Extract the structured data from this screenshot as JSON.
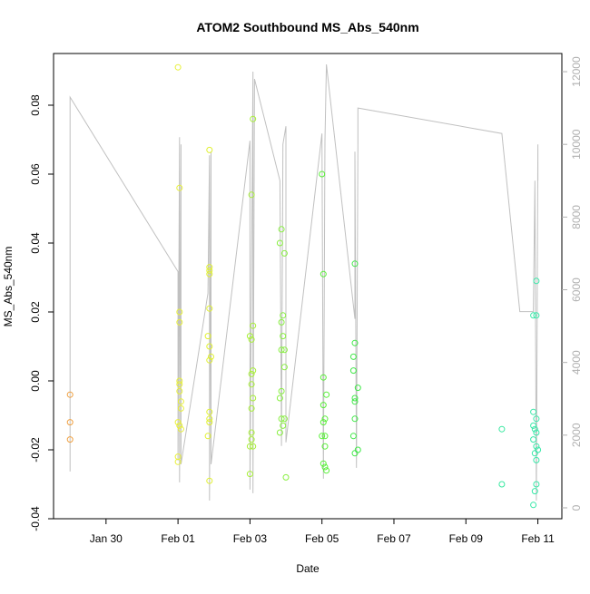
{
  "chart_data": {
    "type": "scatter",
    "title": "ATOM2 Southbound MS_Abs_540nm",
    "xlabel": "Date",
    "ylabel": "MS_Abs_540nm",
    "secondary_ylabel": "",
    "grid": false,
    "legend": "none",
    "x_type": "date",
    "xlim": [
      "2023-01-28T13:00",
      "2023-02-11T16:00"
    ],
    "ylim": [
      -0.04,
      0.095
    ],
    "y2lim": [
      -300,
      12500
    ],
    "x_ticks": [
      {
        "date": "2023-01-30T00:00",
        "label": "Jan 30"
      },
      {
        "date": "2023-02-01T00:00",
        "label": "Feb 01"
      },
      {
        "date": "2023-02-03T00:00",
        "label": "Feb 03"
      },
      {
        "date": "2023-02-05T00:00",
        "label": "Feb 05"
      },
      {
        "date": "2023-02-07T00:00",
        "label": "Feb 07"
      },
      {
        "date": "2023-02-09T00:00",
        "label": "Feb 09"
      },
      {
        "date": "2023-02-11T00:00",
        "label": "Feb 11"
      }
    ],
    "y_ticks": [
      {
        "value": -0.04,
        "label": "-0.04"
      },
      {
        "value": -0.02,
        "label": "-0.02"
      },
      {
        "value": 0.0,
        "label": "0.00"
      },
      {
        "value": 0.02,
        "label": "0.02"
      },
      {
        "value": 0.04,
        "label": "0.04"
      },
      {
        "value": 0.06,
        "label": "0.06"
      },
      {
        "value": 0.08,
        "label": "0.08"
      }
    ],
    "y2_ticks": [
      {
        "value": 0,
        "label": "0"
      },
      {
        "value": 2000,
        "label": "2000"
      },
      {
        "value": 4000,
        "label": "4000"
      },
      {
        "value": 6000,
        "label": "6000"
      },
      {
        "value": 8000,
        "label": "8000"
      },
      {
        "value": 10000,
        "label": "10000"
      },
      {
        "value": 12000,
        "label": "12000"
      }
    ],
    "colors": {
      "line": "#c0c0c0",
      "axis": "#000000",
      "y2_axis": "#b0b0b0"
    },
    "points": [
      {
        "x": "2023-01-29T00:00",
        "y": -0.004,
        "color": "#f0a040"
      },
      {
        "x": "2023-01-29T00:00",
        "y": -0.012,
        "color": "#f0a040"
      },
      {
        "x": "2023-01-29T00:00",
        "y": -0.017,
        "color": "#f0a040"
      },
      {
        "x": "2023-02-01T00:00",
        "y": 0.091,
        "color": "#e8f038"
      },
      {
        "x": "2023-02-01T00:00",
        "y": -0.012,
        "color": "#e8f038"
      },
      {
        "x": "2023-02-01T00:00",
        "y": -0.022,
        "color": "#e8f038"
      },
      {
        "x": "2023-02-01T00:00",
        "y": -0.0235,
        "color": "#e8f038"
      },
      {
        "x": "2023-02-01T01:00",
        "y": 0.056,
        "color": "#e8f038"
      },
      {
        "x": "2023-02-01T01:00",
        "y": 0.02,
        "color": "#e8f038"
      },
      {
        "x": "2023-02-01T01:00",
        "y": 0.017,
        "color": "#e8f038"
      },
      {
        "x": "2023-02-01T01:00",
        "y": 0.0,
        "color": "#e8f038"
      },
      {
        "x": "2023-02-01T01:00",
        "y": -0.001,
        "color": "#e8f038"
      },
      {
        "x": "2023-02-01T01:00",
        "y": -0.003,
        "color": "#e8f038"
      },
      {
        "x": "2023-02-01T02:00",
        "y": -0.006,
        "color": "#e8f038"
      },
      {
        "x": "2023-02-01T02:00",
        "y": -0.008,
        "color": "#e8f038"
      },
      {
        "x": "2023-02-01T01:00",
        "y": -0.013,
        "color": "#e8f038"
      },
      {
        "x": "2023-02-01T02:00",
        "y": -0.014,
        "color": "#e8f038"
      },
      {
        "x": "2023-02-01T20:00",
        "y": -0.016,
        "color": "#e0f030"
      },
      {
        "x": "2023-02-01T20:00",
        "y": 0.013,
        "color": "#e0f030"
      },
      {
        "x": "2023-02-01T21:00",
        "y": 0.067,
        "color": "#e0f030"
      },
      {
        "x": "2023-02-01T21:00",
        "y": 0.033,
        "color": "#e0f030"
      },
      {
        "x": "2023-02-01T21:00",
        "y": 0.032,
        "color": "#e0f030"
      },
      {
        "x": "2023-02-01T21:00",
        "y": 0.031,
        "color": "#e0f030"
      },
      {
        "x": "2023-02-01T21:00",
        "y": 0.021,
        "color": "#e0f030"
      },
      {
        "x": "2023-02-01T21:00",
        "y": 0.01,
        "color": "#e0f030"
      },
      {
        "x": "2023-02-01T22:00",
        "y": 0.007,
        "color": "#e0f030"
      },
      {
        "x": "2023-02-01T21:00",
        "y": 0.006,
        "color": "#e0f030"
      },
      {
        "x": "2023-02-01T21:00",
        "y": -0.009,
        "color": "#e0f030"
      },
      {
        "x": "2023-02-01T21:00",
        "y": -0.011,
        "color": "#e0f030"
      },
      {
        "x": "2023-02-01T21:00",
        "y": -0.012,
        "color": "#e0f030"
      },
      {
        "x": "2023-02-01T21:00",
        "y": -0.029,
        "color": "#e0f030"
      },
      {
        "x": "2023-02-03T00:00",
        "y": 0.013,
        "color": "#a8f038"
      },
      {
        "x": "2023-02-03T02:00",
        "y": 0.076,
        "color": "#a8f038"
      },
      {
        "x": "2023-02-03T01:00",
        "y": 0.054,
        "color": "#a8f038"
      },
      {
        "x": "2023-02-03T02:00",
        "y": 0.016,
        "color": "#a8f038"
      },
      {
        "x": "2023-02-03T01:00",
        "y": 0.012,
        "color": "#a8f038"
      },
      {
        "x": "2023-02-03T02:00",
        "y": 0.003,
        "color": "#a8f038"
      },
      {
        "x": "2023-02-03T01:00",
        "y": 0.002,
        "color": "#a8f038"
      },
      {
        "x": "2023-02-03T01:00",
        "y": -0.001,
        "color": "#a8f038"
      },
      {
        "x": "2023-02-03T02:00",
        "y": -0.005,
        "color": "#a8f038"
      },
      {
        "x": "2023-02-03T01:00",
        "y": -0.008,
        "color": "#a8f038"
      },
      {
        "x": "2023-02-03T01:00",
        "y": -0.015,
        "color": "#a8f038"
      },
      {
        "x": "2023-02-03T01:00",
        "y": -0.017,
        "color": "#a8f038"
      },
      {
        "x": "2023-02-03T00:00",
        "y": -0.019,
        "color": "#a8f038"
      },
      {
        "x": "2023-02-03T02:00",
        "y": -0.019,
        "color": "#a8f038"
      },
      {
        "x": "2023-02-03T00:00",
        "y": -0.027,
        "color": "#a8f038"
      },
      {
        "x": "2023-02-03T21:00",
        "y": 0.044,
        "color": "#88f040"
      },
      {
        "x": "2023-02-03T20:00",
        "y": 0.04,
        "color": "#88f040"
      },
      {
        "x": "2023-02-03T23:00",
        "y": 0.037,
        "color": "#88f040"
      },
      {
        "x": "2023-02-03T22:00",
        "y": 0.019,
        "color": "#88f040"
      },
      {
        "x": "2023-02-03T21:00",
        "y": 0.017,
        "color": "#88f040"
      },
      {
        "x": "2023-02-03T22:00",
        "y": 0.013,
        "color": "#88f040"
      },
      {
        "x": "2023-02-03T21:00",
        "y": 0.009,
        "color": "#88f040"
      },
      {
        "x": "2023-02-03T23:00",
        "y": 0.009,
        "color": "#88f040"
      },
      {
        "x": "2023-02-03T23:00",
        "y": 0.004,
        "color": "#88f040"
      },
      {
        "x": "2023-02-03T21:00",
        "y": -0.003,
        "color": "#88f040"
      },
      {
        "x": "2023-02-03T20:00",
        "y": -0.005,
        "color": "#88f040"
      },
      {
        "x": "2023-02-03T21:00",
        "y": -0.011,
        "color": "#88f040"
      },
      {
        "x": "2023-02-03T23:00",
        "y": -0.011,
        "color": "#88f040"
      },
      {
        "x": "2023-02-03T22:00",
        "y": -0.013,
        "color": "#88f040"
      },
      {
        "x": "2023-02-03T20:00",
        "y": -0.015,
        "color": "#88f040"
      },
      {
        "x": "2023-02-04T00:00",
        "y": -0.028,
        "color": "#88f040"
      },
      {
        "x": "2023-02-05T00:00",
        "y": 0.06,
        "color": "#58f038"
      },
      {
        "x": "2023-02-05T01:00",
        "y": 0.031,
        "color": "#58f038"
      },
      {
        "x": "2023-02-05T01:00",
        "y": 0.001,
        "color": "#58f038"
      },
      {
        "x": "2023-02-05T03:00",
        "y": -0.004,
        "color": "#58f038"
      },
      {
        "x": "2023-02-05T01:00",
        "y": -0.007,
        "color": "#58f038"
      },
      {
        "x": "2023-02-05T02:00",
        "y": -0.011,
        "color": "#58f038"
      },
      {
        "x": "2023-02-05T01:00",
        "y": -0.012,
        "color": "#58f038"
      },
      {
        "x": "2023-02-05T02:00",
        "y": -0.016,
        "color": "#58f038"
      },
      {
        "x": "2023-02-05T00:00",
        "y": -0.016,
        "color": "#58f038"
      },
      {
        "x": "2023-02-05T02:00",
        "y": -0.019,
        "color": "#58f038"
      },
      {
        "x": "2023-02-05T01:00",
        "y": -0.024,
        "color": "#58f038"
      },
      {
        "x": "2023-02-05T02:00",
        "y": -0.025,
        "color": "#58f038"
      },
      {
        "x": "2023-02-05T03:00",
        "y": -0.026,
        "color": "#58f038"
      },
      {
        "x": "2023-02-05T22:00",
        "y": 0.034,
        "color": "#40e848"
      },
      {
        "x": "2023-02-05T22:00",
        "y": 0.011,
        "color": "#40e848"
      },
      {
        "x": "2023-02-05T21:00",
        "y": 0.007,
        "color": "#40e848"
      },
      {
        "x": "2023-02-05T21:00",
        "y": 0.003,
        "color": "#40e848"
      },
      {
        "x": "2023-02-06T00:00",
        "y": -0.002,
        "color": "#40e848"
      },
      {
        "x": "2023-02-05T22:00",
        "y": -0.005,
        "color": "#40e848"
      },
      {
        "x": "2023-02-05T22:00",
        "y": -0.006,
        "color": "#40e848"
      },
      {
        "x": "2023-02-05T22:00",
        "y": -0.011,
        "color": "#40e848"
      },
      {
        "x": "2023-02-05T21:00",
        "y": -0.016,
        "color": "#40e848"
      },
      {
        "x": "2023-02-06T00:00",
        "y": -0.02,
        "color": "#40e848"
      },
      {
        "x": "2023-02-05T22:00",
        "y": -0.021,
        "color": "#40e848"
      },
      {
        "x": "2023-02-10T00:00",
        "y": -0.014,
        "color": "#38e8a0"
      },
      {
        "x": "2023-02-10T00:00",
        "y": -0.03,
        "color": "#38e8a0"
      },
      {
        "x": "2023-02-10T21:00",
        "y": 0.019,
        "color": "#38e8a8"
      },
      {
        "x": "2023-02-10T23:00",
        "y": 0.019,
        "color": "#38e8a8"
      },
      {
        "x": "2023-02-10T23:00",
        "y": 0.029,
        "color": "#38e8a8"
      },
      {
        "x": "2023-02-10T21:00",
        "y": -0.009,
        "color": "#38e8a8"
      },
      {
        "x": "2023-02-10T23:00",
        "y": -0.011,
        "color": "#38e8a8"
      },
      {
        "x": "2023-02-10T21:00",
        "y": -0.013,
        "color": "#38e8a8"
      },
      {
        "x": "2023-02-10T22:00",
        "y": -0.014,
        "color": "#38e8a8"
      },
      {
        "x": "2023-02-10T23:00",
        "y": -0.015,
        "color": "#38e8a8"
      },
      {
        "x": "2023-02-10T21:00",
        "y": -0.017,
        "color": "#38e8a8"
      },
      {
        "x": "2023-02-10T23:00",
        "y": -0.019,
        "color": "#38e8a8"
      },
      {
        "x": "2023-02-11T00:00",
        "y": -0.02,
        "color": "#38e8a8"
      },
      {
        "x": "2023-02-10T22:00",
        "y": -0.021,
        "color": "#38e8a8"
      },
      {
        "x": "2023-02-10T23:00",
        "y": -0.023,
        "color": "#38e8a8"
      },
      {
        "x": "2023-02-10T23:00",
        "y": -0.03,
        "color": "#38e8a8"
      },
      {
        "x": "2023-02-10T22:00",
        "y": -0.032,
        "color": "#38e8a8"
      },
      {
        "x": "2023-02-10T21:00",
        "y": -0.036,
        "color": "#38e8a8"
      }
    ],
    "secondary_series": [
      {
        "x": "2023-01-29T00:00",
        "y2": 1000
      },
      {
        "x": "2023-01-29T00:00",
        "y2": 11300
      },
      {
        "x": "2023-02-01T00:00",
        "y2": 6500
      },
      {
        "x": "2023-02-01T00:00",
        "y2": 1300
      },
      {
        "x": "2023-02-01T01:00",
        "y2": 10200
      },
      {
        "x": "2023-02-01T01:00",
        "y2": 700
      },
      {
        "x": "2023-02-01T02:00",
        "y2": 10000
      },
      {
        "x": "2023-02-01T02:00",
        "y2": 1200
      },
      {
        "x": "2023-02-01T20:00",
        "y2": 5900
      },
      {
        "x": "2023-02-01T21:00",
        "y2": 9700
      },
      {
        "x": "2023-02-01T21:00",
        "y2": 200
      },
      {
        "x": "2023-02-01T22:00",
        "y2": 9800
      },
      {
        "x": "2023-02-01T22:00",
        "y2": 1200
      },
      {
        "x": "2023-02-03T00:00",
        "y2": 10100
      },
      {
        "x": "2023-02-03T00:00",
        "y2": 500
      },
      {
        "x": "2023-02-03T02:00",
        "y2": 12000
      },
      {
        "x": "2023-02-03T02:00",
        "y2": 400
      },
      {
        "x": "2023-02-03T03:00",
        "y2": 11800
      },
      {
        "x": "2023-02-03T20:00",
        "y2": 9000
      },
      {
        "x": "2023-02-03T21:00",
        "y2": 1700
      },
      {
        "x": "2023-02-03T22:00",
        "y2": 10000
      },
      {
        "x": "2023-02-04T00:00",
        "y2": 10500
      },
      {
        "x": "2023-02-04T00:00",
        "y2": 1800
      },
      {
        "x": "2023-02-05T00:00",
        "y2": 10300
      },
      {
        "x": "2023-02-05T01:00",
        "y2": 800
      },
      {
        "x": "2023-02-05T02:00",
        "y2": 10100
      },
      {
        "x": "2023-02-05T03:00",
        "y2": 12200
      },
      {
        "x": "2023-02-05T22:00",
        "y2": 5200
      },
      {
        "x": "2023-02-05T22:00",
        "y2": 9800
      },
      {
        "x": "2023-02-05T23:00",
        "y2": 1100
      },
      {
        "x": "2023-02-06T00:00",
        "y2": 10000
      },
      {
        "x": "2023-02-06T00:00",
        "y2": 11000
      },
      {
        "x": "2023-02-10T00:00",
        "y2": 10300
      },
      {
        "x": "2023-02-10T12:00",
        "y2": 5400
      },
      {
        "x": "2023-02-10T21:00",
        "y2": 5400
      },
      {
        "x": "2023-02-10T22:00",
        "y2": 9000
      },
      {
        "x": "2023-02-10T23:00",
        "y2": 200
      },
      {
        "x": "2023-02-11T00:00",
        "y2": 10000
      },
      {
        "x": "2023-02-11T00:00",
        "y2": 9000
      }
    ]
  }
}
